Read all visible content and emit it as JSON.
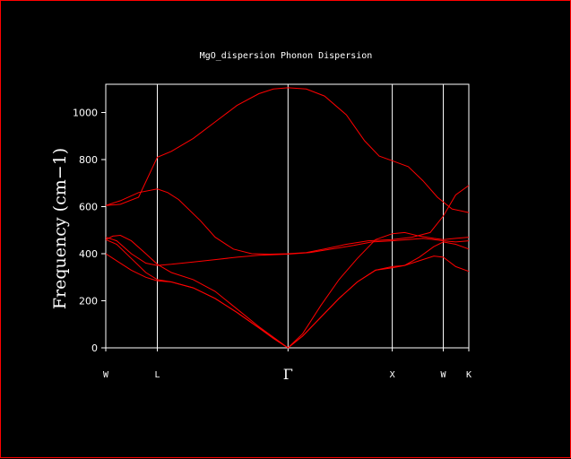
{
  "chart_data": {
    "type": "line",
    "title": "MgO_dispersion Phonon Dispersion",
    "xlabel": "",
    "ylabel": "Frequency (cm−1)",
    "ylim": [
      0,
      1120
    ],
    "yticks": [
      0,
      200,
      400,
      600,
      800,
      1000
    ],
    "kpoints": [
      {
        "label": "W",
        "x": 0
      },
      {
        "label": "L",
        "x": 0.707
      },
      {
        "label": "Γ",
        "x": 2.5
      },
      {
        "label": "X",
        "x": 3.93
      },
      {
        "label": "W",
        "x": 4.63
      },
      {
        "label": "K",
        "x": 4.98
      }
    ],
    "xlim": [
      0,
      4.98
    ],
    "grid": false,
    "series": [
      {
        "values": [
          [
            0,
            605
          ],
          [
            0.2,
            610
          ],
          [
            0.45,
            640
          ],
          [
            0.707,
            810
          ],
          [
            0.9,
            835
          ],
          [
            1.2,
            890
          ],
          [
            1.5,
            960
          ],
          [
            1.8,
            1030
          ],
          [
            2.1,
            1080
          ],
          [
            2.3,
            1100
          ],
          [
            2.5,
            1105
          ],
          [
            2.75,
            1100
          ],
          [
            3.0,
            1070
          ],
          [
            3.3,
            990
          ],
          [
            3.55,
            880
          ],
          [
            3.75,
            815
          ],
          [
            3.93,
            795
          ],
          [
            4.15,
            770
          ],
          [
            4.35,
            710
          ],
          [
            4.55,
            640
          ],
          [
            4.75,
            590
          ],
          [
            4.98,
            575
          ]
        ]
      },
      {
        "values": [
          [
            0,
            605
          ],
          [
            0.2,
            625
          ],
          [
            0.45,
            660
          ],
          [
            0.707,
            675
          ],
          [
            0.85,
            660
          ],
          [
            1.0,
            630
          ],
          [
            1.3,
            540
          ],
          [
            1.5,
            470
          ],
          [
            1.75,
            420
          ],
          [
            2.0,
            400
          ],
          [
            2.25,
            398
          ],
          [
            2.5,
            400
          ],
          [
            2.75,
            405
          ],
          [
            3.0,
            420
          ],
          [
            3.3,
            440
          ],
          [
            3.6,
            455
          ],
          [
            3.93,
            460
          ],
          [
            4.2,
            470
          ],
          [
            4.45,
            490
          ],
          [
            4.63,
            560
          ],
          [
            4.8,
            650
          ],
          [
            4.98,
            690
          ]
        ]
      },
      {
        "values": [
          [
            0,
            470
          ],
          [
            0.15,
            455
          ],
          [
            0.35,
            400
          ],
          [
            0.55,
            360
          ],
          [
            0.707,
            350
          ],
          [
            0.9,
            355
          ],
          [
            1.2,
            365
          ],
          [
            1.5,
            375
          ],
          [
            1.8,
            385
          ],
          [
            2.1,
            393
          ],
          [
            2.5,
            398
          ],
          [
            2.8,
            405
          ],
          [
            3.1,
            420
          ],
          [
            3.4,
            435
          ],
          [
            3.65,
            450
          ],
          [
            3.93,
            455
          ],
          [
            4.15,
            460
          ],
          [
            4.35,
            465
          ],
          [
            4.5,
            460
          ],
          [
            4.63,
            455
          ],
          [
            4.8,
            450
          ],
          [
            4.98,
            455
          ]
        ]
      },
      {
        "values": [
          [
            0,
            460
          ],
          [
            0.1,
            475
          ],
          [
            0.2,
            478
          ],
          [
            0.35,
            455
          ],
          [
            0.55,
            400
          ],
          [
            0.707,
            355
          ],
          [
            0.9,
            320
          ],
          [
            1.2,
            290
          ],
          [
            1.5,
            240
          ],
          [
            1.8,
            165
          ],
          [
            2.1,
            90
          ],
          [
            2.3,
            45
          ],
          [
            2.5,
            0
          ],
          [
            2.7,
            60
          ],
          [
            2.95,
            180
          ],
          [
            3.2,
            290
          ],
          [
            3.45,
            380
          ],
          [
            3.7,
            460
          ],
          [
            3.93,
            485
          ],
          [
            4.1,
            490
          ],
          [
            4.3,
            475
          ],
          [
            4.5,
            465
          ],
          [
            4.63,
            460
          ],
          [
            4.8,
            465
          ],
          [
            4.98,
            470
          ]
        ]
      },
      {
        "values": [
          [
            0,
            460
          ],
          [
            0.15,
            440
          ],
          [
            0.35,
            380
          ],
          [
            0.55,
            320
          ],
          [
            0.707,
            290
          ],
          [
            0.9,
            280
          ],
          [
            1.2,
            255
          ],
          [
            1.5,
            210
          ],
          [
            1.8,
            150
          ],
          [
            2.1,
            85
          ],
          [
            2.3,
            40
          ],
          [
            2.5,
            0
          ],
          [
            2.7,
            50
          ],
          [
            2.95,
            130
          ],
          [
            3.2,
            210
          ],
          [
            3.45,
            280
          ],
          [
            3.7,
            330
          ],
          [
            3.93,
            345
          ],
          [
            4.1,
            350
          ],
          [
            4.3,
            385
          ],
          [
            4.5,
            430
          ],
          [
            4.63,
            450
          ],
          [
            4.8,
            440
          ],
          [
            4.98,
            420
          ]
        ]
      },
      {
        "values": [
          [
            0,
            400
          ],
          [
            0.15,
            370
          ],
          [
            0.35,
            330
          ],
          [
            0.55,
            300
          ],
          [
            0.707,
            285
          ],
          [
            0.9,
            280
          ],
          [
            1.2,
            255
          ],
          [
            1.5,
            210
          ],
          [
            1.8,
            150
          ],
          [
            2.1,
            85
          ],
          [
            2.3,
            40
          ],
          [
            2.5,
            0
          ],
          [
            2.7,
            50
          ],
          [
            2.95,
            130
          ],
          [
            3.2,
            210
          ],
          [
            3.45,
            280
          ],
          [
            3.7,
            330
          ],
          [
            3.93,
            340
          ],
          [
            4.1,
            350
          ],
          [
            4.3,
            370
          ],
          [
            4.5,
            390
          ],
          [
            4.63,
            385
          ],
          [
            4.8,
            345
          ],
          [
            4.98,
            325
          ]
        ]
      }
    ]
  },
  "colors": {
    "background": "#000000",
    "frame_border": "#ff0000",
    "axes": "#ffffff",
    "series_line": "#ff0000"
  }
}
